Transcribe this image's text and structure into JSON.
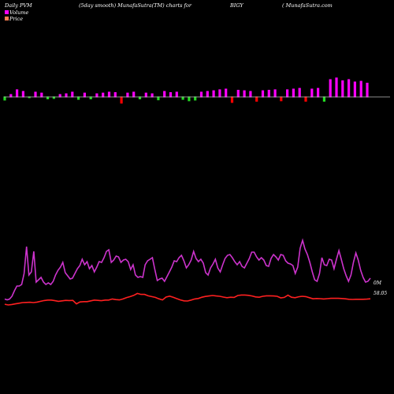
{
  "header": {
    "left": "Daily PVM",
    "mid": "(5day smooth) MunafaSutra(TM) charts for",
    "symbol": "BIGY",
    "right": "( MunafaSutra.com"
  },
  "legend": [
    {
      "label": "Volume",
      "color": "#ff00ff"
    },
    {
      "label": "Price",
      "color": "#ff7f50"
    }
  ],
  "colors": {
    "background": "#000000",
    "volume_up": "#ff00ff",
    "volume_down": "#22dd22",
    "volume_red": "#ff0000",
    "price_line": "#ff2020",
    "volume_line": "#cc33cc",
    "baseline": "#bbbbbb"
  },
  "chart_data": {
    "type": "bar+line",
    "volume_bars": {
      "colors": [
        "d",
        "u",
        "u",
        "u",
        "d",
        "u",
        "u",
        "d",
        "d",
        "u",
        "u",
        "u",
        "d",
        "u",
        "d",
        "u",
        "u",
        "u",
        "u",
        "r",
        "u",
        "u",
        "d",
        "u",
        "u",
        "d",
        "u",
        "u",
        "u",
        "d",
        "d",
        "d",
        "u",
        "u",
        "u",
        "u",
        "u",
        "r",
        "u",
        "u",
        "u",
        "r",
        "u",
        "u",
        "u",
        "r",
        "u",
        "u",
        "u",
        "r",
        "u",
        "u",
        "d",
        "u",
        "u",
        "u",
        "u",
        "u",
        "u",
        "u"
      ],
      "values": [
        0.15,
        0.12,
        0.32,
        0.25,
        0.05,
        0.22,
        0.18,
        0.1,
        0.08,
        0.12,
        0.15,
        0.22,
        0.12,
        0.18,
        0.1,
        0.15,
        0.18,
        0.22,
        0.2,
        -0.28,
        0.18,
        0.22,
        0.1,
        0.18,
        0.15,
        0.14,
        0.25,
        0.2,
        0.22,
        0.12,
        0.18,
        0.15,
        0.22,
        0.25,
        0.28,
        0.32,
        0.35,
        -0.25,
        0.3,
        0.28,
        0.25,
        -0.2,
        0.28,
        0.3,
        0.32,
        -0.18,
        0.32,
        0.35,
        0.38,
        -0.2,
        0.35,
        0.38,
        0.2,
        0.75,
        0.82,
        0.7,
        0.75,
        0.65,
        0.68,
        0.6
      ]
    },
    "price": {
      "values": [
        0.95,
        0.5,
        0.8,
        1.2,
        1.6,
        2.0,
        2.1,
        2.2,
        2.0,
        2.3,
        2.8,
        3.3,
        3.6,
        3.6,
        3.2,
        2.8,
        3.1,
        3.4,
        3.3,
        3.4,
        1.2,
        2.4,
        2.6,
        2.6,
        3.1,
        3.6,
        3.4,
        3.2,
        3.6,
        3.6,
        4.3,
        3.9,
        3.7,
        4.3,
        5.2,
        5.8,
        6.6,
        7.8,
        7.2,
        7.2,
        6.3,
        5.8,
        5.3,
        4.4,
        3.7,
        5.5,
        6.1,
        5.4,
        4.5,
        3.7,
        3.1,
        3.0,
        3.6,
        4.3,
        4.6,
        5.4,
        5.9,
        6.2,
        6.5,
        6.2,
        6.0,
        5.5,
        5.1,
        5.4,
        5.3,
        6.5,
        6.8,
        6.8,
        6.6,
        6.2,
        5.6,
        5.4,
        6.0,
        6.3,
        6.3,
        6.2,
        6.0,
        5.0,
        5.3,
        6.7,
        5.4,
        5.1,
        5.7,
        6.0,
        5.8,
        5.1,
        4.4,
        4.6,
        4.5,
        4.3,
        4.5,
        4.7,
        4.7,
        4.7,
        4.6,
        4.4,
        4.1,
        4.0,
        4.1,
        4.1,
        4.1,
        4.2,
        4.4
      ],
      "last_label": "58.05"
    },
    "volume_smooth": {
      "values": [
        0.55,
        0.45,
        0.55,
        0.9,
        1.6,
        2.2,
        2.2,
        2.4,
        3.8,
        7.2,
        3.6,
        4.0,
        6.6,
        2.7,
        3.0,
        3.3,
        2.7,
        2.4,
        2.6,
        2.4,
        2.8,
        3.6,
        4.2,
        4.6,
        5.2,
        3.9,
        3.5,
        3.1,
        3.2,
        3.8,
        4.4,
        4.8,
        5.6,
        4.9,
        5.3,
        4.4,
        4.8,
        4.0,
        4.6,
        5.3,
        5.2,
        5.8,
        6.6,
        6.8,
        5.2,
        5.5,
        6.0,
        5.9,
        5.2,
        5.5,
        5.6,
        5.3,
        4.3,
        4.9,
        3.6,
        3.3,
        3.4,
        3.3,
        4.9,
        5.4,
        5.6,
        5.8,
        4.3,
        2.9,
        3.1,
        3.2,
        2.8,
        3.4,
        4.0,
        4.6,
        5.4,
        5.3,
        5.8,
        6.1,
        5.4,
        4.5,
        4.9,
        5.5,
        6.6,
        5.7,
        5.3,
        5.6,
        5.1,
        3.9,
        3.6,
        4.5,
        5.0,
        5.6,
        4.5,
        4.0,
        4.9,
        5.7,
        6.1,
        6.2,
        5.8,
        5.3,
        4.9,
        5.3,
        4.7,
        4.5,
        5.1,
        5.7,
        6.5,
        6.5,
        5.9,
        5.5,
        5.8,
        5.5,
        4.8,
        4.7,
        5.7,
        6.2,
        5.9,
        5.5,
        6.2,
        6.1,
        5.4,
        5.1,
        5.0,
        4.8,
        3.8,
        4.6,
        7.0,
        8.0,
        6.9,
        6.2,
        5.2,
        4.0,
        3.0,
        2.8,
        3.8,
        5.8,
        4.9,
        4.8,
        5.6,
        5.5,
        4.4,
        5.6,
        6.7,
        5.6,
        4.4,
        3.5,
        2.8,
        3.6,
        5.2,
        6.4,
        5.5,
        4.2,
        3.3,
        2.7,
        2.8,
        3.2
      ],
      "last_label": "0M"
    }
  }
}
